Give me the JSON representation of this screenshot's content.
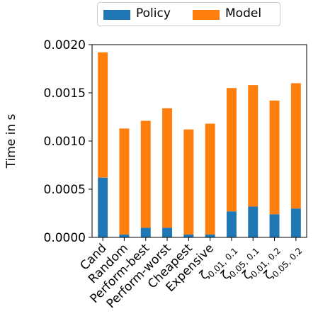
{
  "chart_data": {
    "type": "bar",
    "stacked": true,
    "categories": [
      "Cand",
      "Random",
      "Perform-best",
      "Perform-worst",
      "Cheapest",
      "Expensive",
      "ζ0.01, 0.1",
      "ζ0.05, 0.1",
      "ζ0.01, 0.2",
      "ζ0.05, 0.2"
    ],
    "category_labels": [
      {
        "text": "Cand"
      },
      {
        "text": "Random"
      },
      {
        "text": "Perform-best"
      },
      {
        "text": "Perform-worst"
      },
      {
        "text": "Cheapest"
      },
      {
        "text": "Expensive"
      },
      {
        "text": "ζ",
        "sub": "0.01, 0.1"
      },
      {
        "text": "ζ",
        "sub": "0.05, 0.1"
      },
      {
        "text": "ζ",
        "sub": "0.01, 0.2"
      },
      {
        "text": "ζ",
        "sub": "0.05, 0.2"
      }
    ],
    "series": [
      {
        "name": "Policy",
        "color": "#1f77b4",
        "values": [
          0.00062,
          3e-05,
          0.0001,
          0.0001,
          3e-05,
          3e-05,
          0.00027,
          0.00032,
          0.00024,
          0.0003
        ]
      },
      {
        "name": "Model",
        "color": "#ff7f0e",
        "values": [
          0.0013,
          0.0011,
          0.00111,
          0.00124,
          0.00109,
          0.00115,
          0.00128,
          0.00126,
          0.00118,
          0.0013
        ]
      }
    ],
    "ylabel": "Time in s",
    "xlabel": "",
    "ylim": [
      0,
      0.002
    ],
    "yticks": [
      0.0,
      0.0005,
      0.001,
      0.0015,
      0.002
    ],
    "ytick_labels": [
      "0.0000",
      "0.0005",
      "0.0010",
      "0.0015",
      "0.0020"
    ],
    "legend": "top-center, outside plot",
    "grid": false
  }
}
